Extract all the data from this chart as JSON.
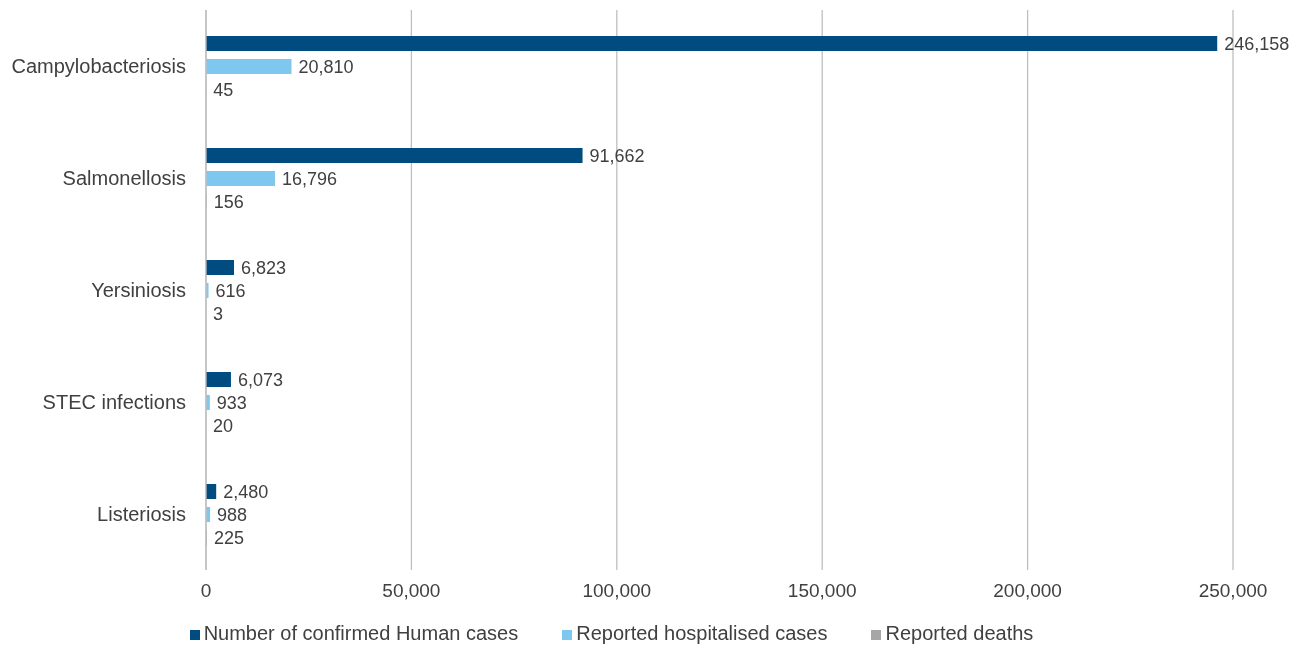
{
  "chart_data": {
    "type": "bar",
    "orientation": "horizontal",
    "categories": [
      "Campylobacteriosis",
      "Salmonellosis",
      "Yersiniosis",
      "STEC infections",
      "Listeriosis"
    ],
    "series": [
      {
        "name": "Number of confirmed Human cases",
        "color": "#004b7f",
        "values": [
          246158,
          91662,
          6823,
          6073,
          2480
        ],
        "value_labels": [
          "246,158",
          "91,662",
          "6,823",
          "6,073",
          "2,480"
        ]
      },
      {
        "name": "Reported hospitalised cases",
        "color": "#7ec8f0",
        "values": [
          20810,
          16796,
          616,
          933,
          988
        ],
        "value_labels": [
          "20,810",
          "16,796",
          "616",
          "933",
          "988"
        ]
      },
      {
        "name": "Reported deaths",
        "color": "#a6a6a6",
        "values": [
          45,
          156,
          3,
          20,
          225
        ],
        "value_labels": [
          "45",
          "156",
          "3",
          "20",
          "225"
        ]
      }
    ],
    "xlim": [
      0,
      250000
    ],
    "xticks": [
      0,
      {
        "value": 50000,
        "label": "50,000"
      },
      {
        "value": 100000,
        "label": "100,000"
      },
      {
        "value": 150000,
        "label": "150,000"
      },
      {
        "value": 200000,
        "label": "200,000"
      },
      {
        "value": 250000,
        "label": "250,000"
      }
    ],
    "grid": "x",
    "legend": "bottom"
  }
}
